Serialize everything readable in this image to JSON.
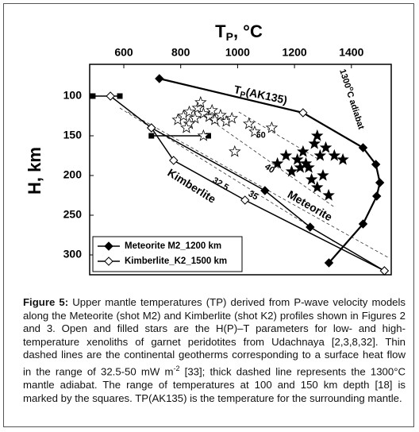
{
  "chart_data": {
    "type": "line",
    "x_label": [
      "T",
      "P",
      ", °C"
    ],
    "y_label": "H, km",
    "xlim": [
      480,
      1540
    ],
    "xticks": [
      600,
      800,
      1000,
      1200,
      1400
    ],
    "ylim": [
      60,
      325
    ],
    "yticks": [
      100,
      150,
      200,
      250,
      300
    ],
    "y_inverted": true,
    "legend": "lower left",
    "series": [
      {
        "name": "Meteorite M2_1200 km",
        "color": "#000000",
        "marker": "filled-diamond",
        "x": [
          697,
          1096,
          1255,
          1516
        ],
        "values": [
          140,
          219,
          265,
          320
        ]
      },
      {
        "name": "Kimberlite_K2_1500 km",
        "color": "#000000",
        "marker": "open-diamond",
        "x": [
          553,
          697,
          775,
          1026,
          1516
        ],
        "values": [
          100,
          140,
          181,
          231,
          320
        ]
      }
    ],
    "tp_ak135": {
      "label": [
        "T",
        "P",
        "(AK135)"
      ],
      "color": "#000000",
      "x": [
        725,
        1230,
        1441,
        1486,
        1500,
        1489,
        1441,
        1321
      ],
      "values": [
        78,
        121,
        165,
        186,
        209,
        226,
        261,
        310
      ]
    },
    "adiabat_label": [
      "1300",
      "o",
      "C adiabat"
    ],
    "stars_open": {
      "x": [
        790,
        810,
        830,
        850,
        860,
        880,
        900,
        920,
        940,
        960,
        980,
        1040,
        1060,
        1120,
        830,
        870,
        990,
        880,
        820,
        910
      ],
      "values": [
        130,
        125,
        120,
        128,
        115,
        122,
        126,
        130,
        124,
        132,
        128,
        135,
        145,
        140,
        135,
        108,
        170,
        150,
        140,
        118
      ]
    },
    "stars_filled": {
      "x": [
        1140,
        1170,
        1190,
        1210,
        1230,
        1250,
        1270,
        1290,
        1310,
        1340,
        1370,
        1300,
        1260,
        1220,
        1280,
        1320,
        1240,
        1280
      ],
      "values": [
        185,
        175,
        195,
        180,
        170,
        190,
        160,
        175,
        165,
        175,
        180,
        200,
        205,
        190,
        215,
        225,
        185,
        150
      ]
    },
    "squares": {
      "x": [
        491,
        586,
        697,
        897
      ],
      "values": [
        100,
        100,
        150,
        150
      ]
    },
    "geotherms": [
      {
        "label": "32.5",
        "x": [
          586,
          1338
        ],
        "values": [
          115,
          283
        ]
      },
      {
        "label": "35",
        "x": [
          614,
          1528
        ],
        "values": [
          120,
          303
        ]
      },
      {
        "label": "40",
        "x": [
          865,
          1337
        ],
        "values": [
          120,
          239
        ]
      },
      {
        "label": "50",
        "x": [
          1004,
          1282
        ],
        "values": [
          120,
          179
        ]
      }
    ],
    "annotations": [
      "Kimberlite",
      "Meteorite"
    ]
  },
  "caption": {
    "label": "Figure 5:",
    "text1": " Upper mantle temperatures (TP) derived from P-wave velocity models along the Meteorite (shot M2) and Kimberlite (shot K2) profiles shown in Figures 2 and 3. Open and filled stars are the H(P)–T parameters for low- and high-temperature xenoliths of garnet peridotites from Udachnaya [2,3,8,32]. Thin dashed lines are the continental geotherms corresponding to a surface heat flow in the range of 32.5-50 mW m",
    "sup": "-2",
    "text2": " [33]; thick dashed line represents the 1300°C mantle adiabat. The range of temperatures at 100 and 150 km depth [18] is marked by the squares. TP(AK135) is the temperature for the surrounding mantle."
  }
}
